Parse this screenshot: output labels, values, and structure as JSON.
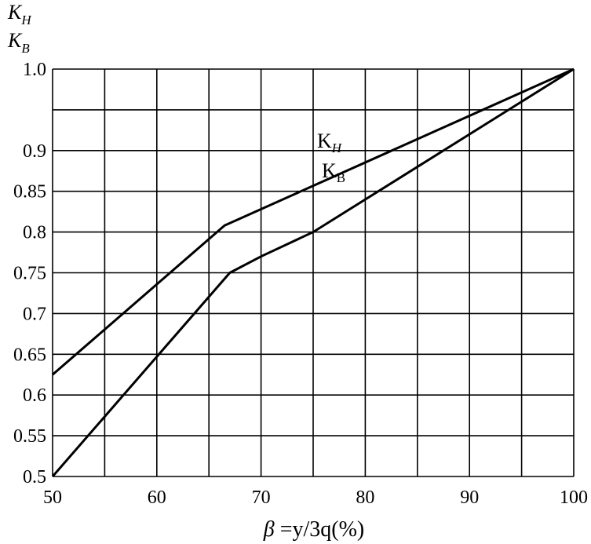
{
  "chart_data": {
    "type": "line",
    "title": "",
    "xlabel": {
      "prefix": "β",
      "text": " =y/3q(%)"
    },
    "ylabel": {
      "line1": "K",
      "line1_sub": "H",
      "line2": "K",
      "line2_sub": "B"
    },
    "xlim": [
      50,
      100
    ],
    "ylim": [
      0.5,
      1.0
    ],
    "x_ticks": [
      "50",
      "60",
      "70",
      "80",
      "90",
      "100"
    ],
    "y_ticks": [
      "0.5",
      "0.55",
      "0.6",
      "0.65",
      "0.7",
      "0.75",
      "0.8",
      "0.85",
      "0.9",
      "1.0"
    ],
    "grid": true,
    "series": [
      {
        "name": "KH",
        "label_main": "K",
        "label_sub": "H",
        "x": [
          50,
          66.5,
          100
        ],
        "y": [
          0.625,
          0.808,
          1.0
        ]
      },
      {
        "name": "KB",
        "label_main": "K",
        "label_sub": "B",
        "x": [
          50,
          67,
          70,
          75,
          100
        ],
        "y": [
          0.5,
          0.75,
          0.77,
          0.8,
          1.0
        ]
      }
    ]
  }
}
